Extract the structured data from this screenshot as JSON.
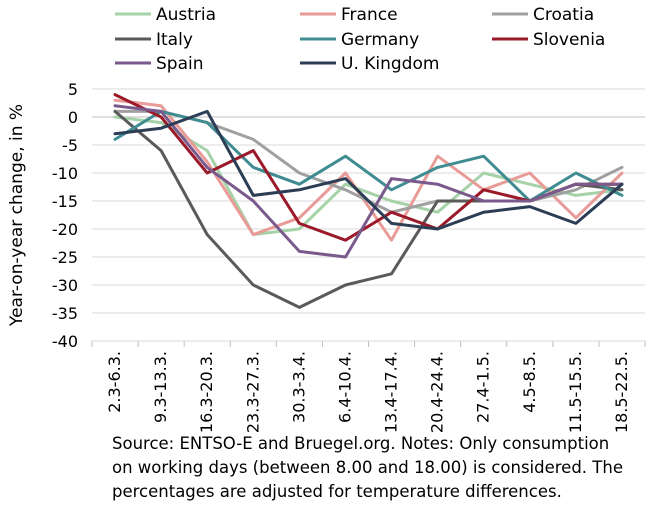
{
  "chart_data": {
    "type": "line",
    "title": "",
    "ylabel": "Year-on-year change, in %",
    "xlabel": "",
    "ylim": [
      -40,
      5
    ],
    "yticks": [
      5,
      0,
      -5,
      -10,
      -15,
      -20,
      -25,
      -30,
      -35,
      -40
    ],
    "grid": true,
    "legend_position": "top",
    "categories": [
      "2.3-6.3.",
      "9.3-13.3.",
      "16.3-20.3.",
      "23.3-27.3.",
      "30.3-3.4.",
      "6.4-10.4.",
      "13.4-17.4.",
      "20.4-24.4.",
      "27.4-1.5.",
      "4.5-8.5.",
      "11.5-15.5.",
      "18.5-22.5."
    ],
    "series": [
      {
        "name": "Austria",
        "color": "#a6d2a8",
        "values": [
          0,
          -1,
          -6,
          -21,
          -20,
          -12,
          -15,
          -17,
          -10,
          -12,
          -14,
          -13
        ]
      },
      {
        "name": "France",
        "color": "#e89b97",
        "values": [
          3,
          2,
          -8,
          -21,
          -18,
          -10,
          -22,
          -7,
          -13,
          -10,
          -18,
          -10
        ]
      },
      {
        "name": "Croatia",
        "color": "#a0a0a0",
        "values": [
          1,
          1,
          -1,
          -4,
          -10,
          -13,
          -17,
          -15,
          -15,
          -15,
          -13,
          -9
        ]
      },
      {
        "name": "Italy",
        "color": "#5a5a5a",
        "values": [
          1,
          -6,
          -21,
          -30,
          -34,
          -30,
          -28,
          -15,
          -15,
          -15,
          -12,
          -13
        ]
      },
      {
        "name": "Germany",
        "color": "#3f8c92",
        "values": [
          -4,
          1,
          -1,
          -9,
          -12,
          -7,
          -13,
          -9,
          -7,
          -15,
          -10,
          -14
        ]
      },
      {
        "name": "Slovenia",
        "color": "#9b1a2a",
        "values": [
          4,
          0,
          -10,
          -6,
          -19,
          -22,
          -17,
          -20,
          -13,
          -15,
          -12,
          -12
        ]
      },
      {
        "name": "Spain",
        "color": "#7a5a8c",
        "values": [
          2,
          1,
          -9,
          -15,
          -24,
          -25,
          -11,
          -12,
          -15,
          -15,
          -12,
          -12
        ]
      },
      {
        "name": "U. Kingdom",
        "color": "#2c3e55",
        "values": [
          -3,
          -2,
          1,
          -14,
          -13,
          -11,
          -19,
          -20,
          -17,
          -16,
          -19,
          -12
        ]
      }
    ]
  },
  "footnote": {
    "lines": [
      "Source: ENTSO-E and Bruegel.org. Notes: Only consumption",
      "on working days (between 8.00 and 18.00) is considered. The",
      "percentages are adjusted for temperature differences."
    ]
  }
}
